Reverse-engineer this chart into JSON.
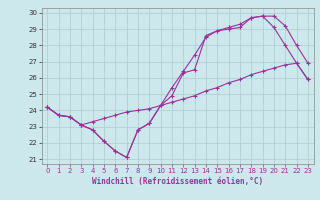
{
  "background_color": "#cce8ec",
  "grid_color": "#aacccc",
  "line_color": "#993399",
  "xlabel": "Windchill (Refroidissement éolien,°C)",
  "xlim": [
    -0.5,
    23.5
  ],
  "ylim": [
    20.7,
    30.3
  ],
  "yticks": [
    21,
    22,
    23,
    24,
    25,
    26,
    27,
    28,
    29,
    30
  ],
  "xticks": [
    0,
    1,
    2,
    3,
    4,
    5,
    6,
    7,
    8,
    9,
    10,
    11,
    12,
    13,
    14,
    15,
    16,
    17,
    18,
    19,
    20,
    21,
    22,
    23
  ],
  "line1_x": [
    0,
    1,
    2,
    3,
    4,
    5,
    6,
    7,
    8,
    9,
    10,
    11,
    12,
    13,
    14,
    15,
    16,
    17,
    18,
    19,
    20,
    21,
    22,
    23
  ],
  "line1_y": [
    24.2,
    23.7,
    23.6,
    23.1,
    22.8,
    22.1,
    21.5,
    21.1,
    22.8,
    23.2,
    24.3,
    24.9,
    26.3,
    26.5,
    28.6,
    28.9,
    29.0,
    29.1,
    29.7,
    29.8,
    29.1,
    28.0,
    26.9,
    25.9
  ],
  "line2_x": [
    0,
    1,
    2,
    3,
    4,
    5,
    6,
    7,
    8,
    9,
    10,
    11,
    12,
    13,
    14,
    15,
    16,
    17,
    18,
    19,
    20,
    21,
    22,
    23
  ],
  "line2_y": [
    24.2,
    23.7,
    23.6,
    23.1,
    23.3,
    23.5,
    23.7,
    23.9,
    24.0,
    24.1,
    24.3,
    24.5,
    24.7,
    24.9,
    25.2,
    25.4,
    25.7,
    25.9,
    26.2,
    26.4,
    26.6,
    26.8,
    26.9,
    25.9
  ],
  "line3_x": [
    0,
    1,
    2,
    3,
    4,
    5,
    6,
    7,
    8,
    9,
    10,
    11,
    12,
    13,
    14,
    15,
    16,
    17,
    18,
    19,
    20,
    21,
    22,
    23
  ],
  "line3_y": [
    24.2,
    23.7,
    23.6,
    23.1,
    22.8,
    22.1,
    21.5,
    21.1,
    22.8,
    23.2,
    24.3,
    25.4,
    26.4,
    27.4,
    28.5,
    28.9,
    29.1,
    29.3,
    29.7,
    29.8,
    29.8,
    29.2,
    28.0,
    26.9
  ]
}
